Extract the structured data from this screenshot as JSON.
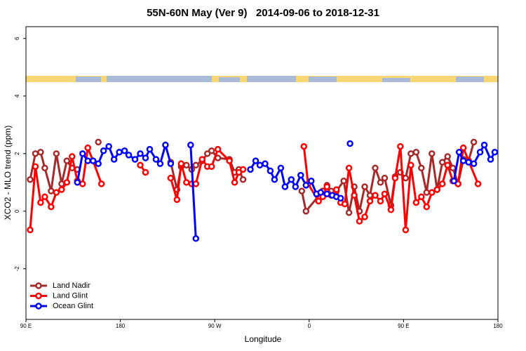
{
  "chart_data": {
    "type": "line",
    "title": "55N-60N May (Ver 9)   2014-09-06 to 2018-12-31",
    "xlabel": "Longitude",
    "ylabel": "XCO2 - MLO trend (ppm)",
    "xlim": [
      90,
      540
    ],
    "ylim": [
      -3.76,
      6.41
    ],
    "xticks": [
      {
        "value": 90,
        "label": "90 E"
      },
      180,
      {
        "value": 270,
        "label": "90 W"
      },
      0.0,
      {
        "value": 450,
        "label": "90 E"
      },
      {
        "value": 540,
        "label": "180"
      }
    ],
    "yticks": [
      -2,
      0,
      2,
      4,
      6
    ],
    "legend": "bottom-left",
    "series": [
      {
        "name": "Land Nadir",
        "color": "#a52a2a",
        "x": [
          94,
          99,
          104,
          108,
          114,
          119,
          124,
          129,
          134,
          139,
          150,
          159,
          200,
          228,
          234,
          238,
          243,
          248,
          252,
          258,
          263,
          267,
          273,
          284,
          289,
          293,
          297,
          320,
          353,
          357,
          373,
          377,
          381,
          386,
          393,
          398,
          403,
          408,
          413,
          418,
          423,
          428,
          432,
          438,
          442,
          447,
          452,
          457,
          462,
          467,
          472,
          477,
          482,
          487,
          492,
          497,
          502,
          507,
          512,
          517
        ],
        "values": [
          1.1,
          2.0,
          2.05,
          1.5,
          0.7,
          2.0,
          0.95,
          1.75,
          1.5,
          1.45,
          null,
          2.4,
          null,
          1.7,
          0.75,
          1.55,
          1.6,
          1.45,
          1.6,
          1.75,
          2.0,
          2.1,
          1.85,
          1.8,
          1.35,
          1.45,
          1.1,
          null,
          0.7,
          0.0,
          0.7,
          0.9,
          0.7,
          0.7,
          1.05,
          -0.05,
          0.85,
          0.0,
          0.85,
          0.55,
          1.5,
          1.0,
          1.15,
          0.2,
          1.2,
          1.35,
          1.15,
          2.0,
          2.05,
          1.5,
          0.65,
          2.0,
          0.75,
          1.7,
          1.9,
          1.5,
          0.95,
          1.8,
          1.75,
          2.4
        ]
      },
      {
        "name": "Land Glint",
        "color": "#ff0000",
        "x": [
          94,
          99,
          104,
          108,
          114,
          119,
          124,
          129,
          134,
          139,
          144,
          149,
          154,
          162,
          180,
          199,
          204,
          220,
          228,
          234,
          238,
          243,
          248,
          252,
          258,
          263,
          267,
          273,
          284,
          289,
          293,
          297,
          320,
          355,
          359,
          369,
          373,
          377,
          381,
          386,
          390,
          394,
          398,
          403,
          408,
          413,
          418,
          423,
          428,
          432,
          438,
          442,
          447,
          452,
          457,
          462,
          467,
          472,
          477,
          482,
          487,
          492,
          497,
          502,
          507,
          512,
          521
        ],
        "values": [
          -0.65,
          1.55,
          0.3,
          0.5,
          0.15,
          0.65,
          0.75,
          1.0,
          1.9,
          1.05,
          0.95,
          2.2,
          1.75,
          0.95,
          null,
          1.6,
          1.35,
          null,
          1.15,
          0.4,
          1.65,
          1.0,
          0.95,
          0.95,
          1.8,
          1.55,
          1.55,
          2.15,
          1.75,
          1.0,
          1.35,
          1.45,
          null,
          2.25,
          0.95,
          0.35,
          0.5,
          0.85,
          0.55,
          0.75,
          0.3,
          0.25,
          1.5,
          0.55,
          -0.35,
          -0.2,
          0.35,
          0.55,
          0.35,
          0.6,
          0.05,
          1.15,
          2.25,
          -0.65,
          1.6,
          0.3,
          0.5,
          0.15,
          0.65,
          0.75,
          0.95,
          1.6,
          1.05,
          0.95,
          2.2,
          1.75,
          0.95
        ]
      },
      {
        "name": "Ocean Glint",
        "color": "#0000ff",
        "x": [
          139,
          144,
          149,
          154,
          159,
          164,
          169,
          174,
          179,
          184,
          188,
          194,
          199,
          204,
          208,
          214,
          218,
          223,
          228,
          240,
          247,
          252,
          280,
          304,
          309,
          313,
          318,
          323,
          327,
          333,
          337,
          343,
          347,
          352,
          357,
          362,
          367,
          371,
          377,
          382,
          386,
          390,
          395,
          399,
          450,
          498,
          503,
          507,
          512,
          517,
          523,
          527,
          533,
          537
        ],
        "values": [
          1.0,
          2.0,
          1.75,
          1.75,
          1.65,
          2.1,
          2.25,
          1.8,
          2.05,
          2.1,
          1.95,
          1.8,
          2.0,
          1.85,
          2.15,
          1.8,
          1.65,
          2.3,
          1.65,
          null,
          2.3,
          -0.95,
          null,
          1.45,
          1.75,
          1.6,
          1.65,
          1.4,
          1.1,
          1.5,
          0.85,
          1.1,
          0.85,
          1.25,
          0.9,
          1.05,
          0.6,
          0.65,
          0.6,
          0.55,
          0.5,
          0.45,
          null,
          2.35,
          null,
          1.05,
          2.05,
          1.75,
          1.7,
          1.65,
          2.05,
          2.3,
          1.8,
          2.05
        ]
      }
    ]
  }
}
